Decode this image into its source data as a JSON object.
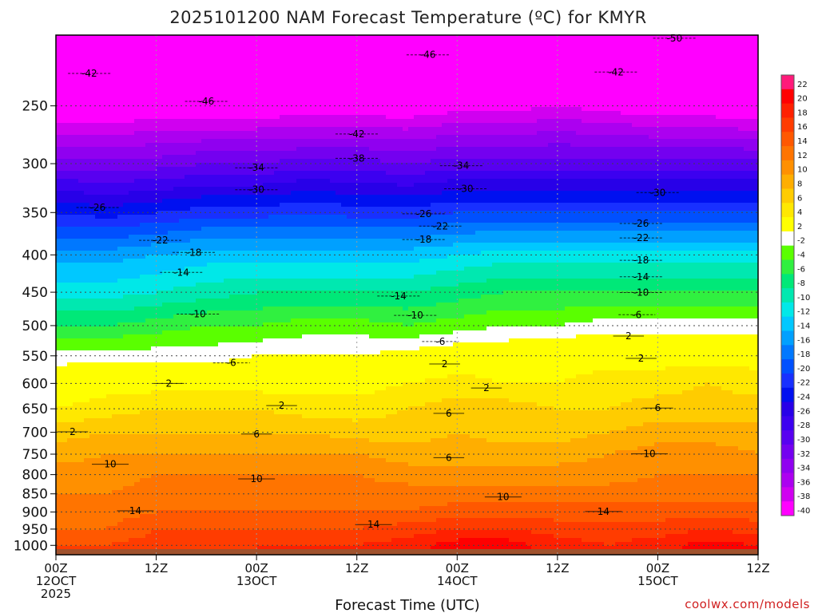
{
  "title": "2025101200 NAM Forecast Temperature (ºC) for KMYR",
  "credit": "coolwx.com/models",
  "chart_data": {
    "type": "heatmap",
    "title": "2025101200 NAM Forecast Temperature (ºC) for KMYR",
    "xlabel": "Forecast Time (UTC)",
    "ylabel": "",
    "x_ticks": [
      {
        "hour": 0,
        "lines": [
          "00Z",
          "12OCT",
          "2025"
        ]
      },
      {
        "hour": 12,
        "lines": [
          "12Z"
        ]
      },
      {
        "hour": 24,
        "lines": [
          "00Z",
          "13OCT"
        ]
      },
      {
        "hour": 36,
        "lines": [
          "12Z"
        ]
      },
      {
        "hour": 48,
        "lines": [
          "00Z",
          "14OCT"
        ]
      },
      {
        "hour": 60,
        "lines": [
          "12Z"
        ]
      },
      {
        "hour": 72,
        "lines": [
          "00Z",
          "15OCT"
        ]
      },
      {
        "hour": 84,
        "lines": [
          "12Z"
        ]
      }
    ],
    "xlim": [
      0,
      84
    ],
    "y_ticks": [
      250,
      300,
      350,
      400,
      450,
      500,
      550,
      600,
      650,
      700,
      750,
      800,
      850,
      900,
      950,
      1000
    ],
    "ylim": [
      1030,
      200
    ],
    "y_scale": "log-pressure",
    "grid": true,
    "colorbar": {
      "ticks": [
        22,
        20,
        18,
        16,
        14,
        12,
        10,
        8,
        6,
        4,
        2,
        -2,
        -4,
        -6,
        -8,
        -10,
        -12,
        -14,
        -16,
        -18,
        -20,
        -22,
        -24,
        -26,
        -28,
        -30,
        -32,
        -34,
        -36,
        -38,
        -40
      ],
      "colors": [
        "#ff1a7a",
        "#ff0000",
        "#ff2000",
        "#ff3c00",
        "#ff5800",
        "#ff7400",
        "#ff9000",
        "#ffae00",
        "#ffcc00",
        "#ffe800",
        "#ffff00",
        "#ffffff",
        "#5aff00",
        "#30f040",
        "#00e878",
        "#00e8b0",
        "#00e8e8",
        "#00c8ff",
        "#00a0ff",
        "#0078ff",
        "#0050ff",
        "#1830ff",
        "#0010f0",
        "#2800e8",
        "#3c00f0",
        "#5800f0",
        "#7400f0",
        "#9000f0",
        "#ac00f0",
        "#d000f0",
        "#ff00ff"
      ]
    },
    "levels": [
      1000,
      950,
      900,
      850,
      800,
      750,
      700,
      650,
      600,
      550,
      500,
      450,
      400,
      350,
      300,
      250,
      200
    ],
    "times": [
      0,
      6,
      12,
      18,
      24,
      30,
      36,
      42,
      48,
      54,
      60,
      66,
      72,
      78,
      84
    ],
    "temperature_grid": [
      [
        14,
        14,
        15,
        15,
        16,
        16,
        16,
        17,
        19,
        19,
        17,
        16,
        17,
        19,
        18
      ],
      [
        12,
        12,
        14,
        14,
        14,
        14,
        14,
        15,
        16,
        16,
        15,
        15,
        15,
        16,
        15
      ],
      [
        11,
        11,
        12,
        12,
        12,
        12,
        12,
        12,
        13,
        13,
        13,
        13,
        13,
        13,
        13
      ],
      [
        10,
        10,
        11,
        11,
        11,
        11,
        11,
        11,
        11,
        11,
        11,
        11,
        11,
        11,
        11
      ],
      [
        9,
        9,
        10,
        10,
        10,
        10,
        10,
        9,
        9,
        9,
        9,
        9,
        10,
        10,
        10
      ],
      [
        7,
        8,
        8,
        8,
        8,
        8,
        8,
        7,
        7,
        7,
        7,
        8,
        9,
        9,
        8
      ],
      [
        5,
        6,
        6,
        6,
        6,
        6,
        5,
        5,
        6,
        5,
        5,
        6,
        7,
        7,
        7
      ],
      [
        2,
        3,
        4,
        4,
        4,
        3,
        3,
        4,
        5,
        5,
        4,
        4,
        5,
        5,
        5
      ],
      [
        0,
        1,
        1,
        1,
        1,
        1,
        1,
        2,
        3,
        2,
        2,
        3,
        3,
        4,
        3
      ],
      [
        -3,
        -3,
        -3,
        -3,
        -2,
        -2,
        -2,
        -1,
        0,
        0,
        1,
        1,
        1,
        1,
        1
      ],
      [
        -8,
        -8,
        -7,
        -6,
        -6,
        -5,
        -5,
        -6,
        -5,
        -4,
        -4,
        -3,
        -3,
        -3,
        -3
      ],
      [
        -13,
        -13,
        -12,
        -11,
        -10,
        -10,
        -10,
        -10,
        -9,
        -8,
        -8,
        -8,
        -8,
        -8,
        -8
      ],
      [
        -17,
        -17,
        -16,
        -15,
        -15,
        -15,
        -15,
        -15,
        -14,
        -13,
        -13,
        -13,
        -13,
        -13,
        -13
      ],
      [
        -24,
        -25,
        -24,
        -23,
        -23,
        -22,
        -23,
        -23,
        -22,
        -22,
        -22,
        -22,
        -22,
        -22,
        -22
      ],
      [
        -33,
        -33,
        -33,
        -32,
        -32,
        -31,
        -31,
        -32,
        -31,
        -31,
        -31,
        -31,
        -31,
        -31,
        -31
      ],
      [
        -43,
        -43,
        -42,
        -42,
        -42,
        -42,
        -42,
        -42,
        -41,
        -41,
        -40,
        -41,
        -42,
        -42,
        -43
      ],
      [
        -49,
        -49,
        -48,
        -48,
        -47,
        -47,
        -47,
        -47,
        -47,
        -47,
        -47,
        -47,
        -48,
        -49,
        -50
      ]
    ],
    "contour_labels": [
      {
        "t": 4.0,
        "p": 228,
        "text": "-42",
        "dashed": true
      },
      {
        "t": 2.0,
        "p": 706,
        "text": "2"
      },
      {
        "t": 13.5,
        "p": 606,
        "text": "2"
      },
      {
        "t": 18.0,
        "p": 249,
        "text": "-46"
      },
      {
        "t": 15.0,
        "p": 427,
        "text": "-14"
      },
      {
        "t": 16.5,
        "p": 401,
        "text": "-18"
      },
      {
        "t": 12.5,
        "p": 386,
        "text": "-22"
      },
      {
        "t": 5.0,
        "p": 348,
        "text": "-26"
      },
      {
        "t": 17.0,
        "p": 487,
        "text": "-10"
      },
      {
        "t": 21.0,
        "p": 568,
        "text": "-6"
      },
      {
        "t": 24.0,
        "p": 329,
        "text": "-30"
      },
      {
        "t": 24.0,
        "p": 307,
        "text": "-34"
      },
      {
        "t": 27.0,
        "p": 650,
        "text": "2"
      },
      {
        "t": 24.0,
        "p": 711,
        "text": "6"
      },
      {
        "t": 24.0,
        "p": 819,
        "text": "10"
      },
      {
        "t": 6.5,
        "p": 782,
        "text": "10"
      },
      {
        "t": 9.5,
        "p": 906,
        "text": "14"
      },
      {
        "t": 36.0,
        "p": 276,
        "text": "-42"
      },
      {
        "t": 36.0,
        "p": 298,
        "text": "-38"
      },
      {
        "t": 41.0,
        "p": 460,
        "text": "-14"
      },
      {
        "t": 43.0,
        "p": 489,
        "text": "-10"
      },
      {
        "t": 46.0,
        "p": 531,
        "text": "-6"
      },
      {
        "t": 46.5,
        "p": 570,
        "text": "2"
      },
      {
        "t": 44.0,
        "p": 385,
        "text": "-18"
      },
      {
        "t": 46.0,
        "p": 369,
        "text": "-22"
      },
      {
        "t": 44.0,
        "p": 355,
        "text": "-26"
      },
      {
        "t": 47.0,
        "p": 666,
        "text": "6"
      },
      {
        "t": 47.0,
        "p": 766,
        "text": "6"
      },
      {
        "t": 53.5,
        "p": 867,
        "text": "10"
      },
      {
        "t": 38.0,
        "p": 946,
        "text": "14"
      },
      {
        "t": 48.5,
        "p": 305,
        "text": "-34"
      },
      {
        "t": 49.0,
        "p": 328,
        "text": "-30"
      },
      {
        "t": 44.5,
        "p": 215,
        "text": "-46"
      },
      {
        "t": 51.5,
        "p": 615,
        "text": "2"
      },
      {
        "t": 74.0,
        "p": 204,
        "text": "-50"
      },
      {
        "t": 67.0,
        "p": 227,
        "text": "-42"
      },
      {
        "t": 72.0,
        "p": 332,
        "text": "-30"
      },
      {
        "t": 70.0,
        "p": 366,
        "text": "-26"
      },
      {
        "t": 70.0,
        "p": 383,
        "text": "-22"
      },
      {
        "t": 70.0,
        "p": 411,
        "text": "-18"
      },
      {
        "t": 70.0,
        "p": 433,
        "text": "-14"
      },
      {
        "t": 70.0,
        "p": 455,
        "text": "-10"
      },
      {
        "t": 69.5,
        "p": 488,
        "text": "-6"
      },
      {
        "t": 68.5,
        "p": 522,
        "text": "2"
      },
      {
        "t": 70.0,
        "p": 560,
        "text": "2"
      },
      {
        "t": 72.0,
        "p": 655,
        "text": "6"
      },
      {
        "t": 71.0,
        "p": 757,
        "text": "10"
      },
      {
        "t": 65.5,
        "p": 908,
        "text": "14"
      }
    ]
  }
}
